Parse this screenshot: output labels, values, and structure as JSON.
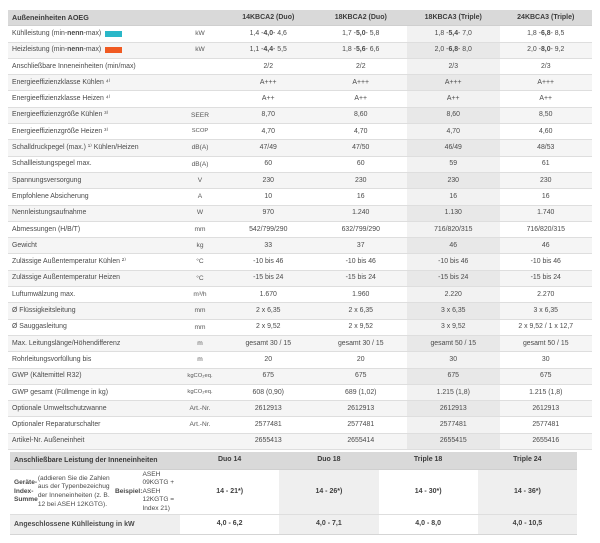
{
  "top_table": {
    "title": "Außeneinheiten AOEG",
    "columns": [
      "14KBCA2 (Duo)",
      "18KBCA2 (Duo)",
      "18KBCA3 (Triple)",
      "24KBCA3 (Triple)"
    ],
    "highlight_column_index": 2,
    "colors": {
      "cooling_swatch": "#2ab7c8",
      "heating_swatch": "#f05a22",
      "header_bg": "#d9d9d9",
      "stripe": "#f5f5f5"
    },
    "capacity_rows": [
      {
        "label_parts": [
          {
            "text": "Kühlleistung (min-",
            "bold": false
          },
          {
            "text": "nenn",
            "bold": true
          },
          {
            "text": "-max)",
            "bold": false
          }
        ],
        "swatch": "cooling-color-swatch",
        "swatch_color": "#2ab7c8",
        "unit": "kW",
        "values": [
          {
            "pre": "1,4 - ",
            "bold": "4,0",
            "post": " - 4,6"
          },
          {
            "pre": "1,7 - ",
            "bold": "5,0",
            "post": " - 5,8"
          },
          {
            "pre": "1,8 - ",
            "bold": "5,4",
            "post": " - 7,0"
          },
          {
            "pre": "1,8 - ",
            "bold": "6,8",
            "post": " - 8,5"
          }
        ]
      },
      {
        "label_parts": [
          {
            "text": "Heizleistung (min-",
            "bold": false
          },
          {
            "text": "nenn",
            "bold": true
          },
          {
            "text": "-max)",
            "bold": false
          }
        ],
        "swatch": "heating-color-swatch",
        "swatch_color": "#f05a22",
        "unit": "kW",
        "values": [
          {
            "pre": "1,1 - ",
            "bold": "4,4",
            "post": " - 5,5"
          },
          {
            "pre": "1,8 - ",
            "bold": "5,6",
            "post": " - 6,6"
          },
          {
            "pre": "2,0 - ",
            "bold": "6,8",
            "post": " - 8,0"
          },
          {
            "pre": "2,0 - ",
            "bold": "8,0",
            "post": " - 9,2"
          }
        ]
      }
    ],
    "rows": [
      {
        "label": "Anschließbare Inneneinheiten (min/max)",
        "unit": "",
        "values": [
          "2/2",
          "2/2",
          "2/3",
          "2/3"
        ]
      },
      {
        "label": "Energieeffizienzklasse Kühlen ⁴⁾",
        "unit": "",
        "values": [
          "A+++",
          "A+++",
          "A+++",
          "A+++"
        ]
      },
      {
        "label": "Energieeffizienzklasse Heizen ⁴⁾",
        "unit": "",
        "values": [
          "A++",
          "A++",
          "A++",
          "A++"
        ]
      },
      {
        "label": "Energieeffizienzgröße Kühlen ³⁾",
        "unit": "SEER",
        "values": [
          "8,70",
          "8,60",
          "8,60",
          "8,50"
        ]
      },
      {
        "label": "Energieeffizienzgröße Heizen ³⁾",
        "unit": "SCOP",
        "values": [
          "4,70",
          "4,70",
          "4,70",
          "4,60"
        ]
      },
      {
        "label": "Schalldruckpegel (max.) ¹⁾ Kühlen/Heizen",
        "unit": "dB(A)",
        "values": [
          "47/49",
          "47/50",
          "46/49",
          "48/53"
        ]
      },
      {
        "label": "Schallleistungspegel max.",
        "unit": "dB(A)",
        "values": [
          "60",
          "60",
          "59",
          "61"
        ]
      },
      {
        "label": "Spannungsversorgung",
        "unit": "V",
        "values": [
          "230",
          "230",
          "230",
          "230"
        ]
      },
      {
        "label": "Empfohlene Absicherung",
        "unit": "A",
        "values": [
          "10",
          "16",
          "16",
          "16"
        ]
      },
      {
        "label": "Nennleistungsaufnahme",
        "unit": "W",
        "values": [
          "970",
          "1.240",
          "1.130",
          "1.740"
        ]
      },
      {
        "label": "Abmessungen (H/B/T)",
        "unit": "mm",
        "values": [
          "542/799/290",
          "632/799/290",
          "716/820/315",
          "716/820/315"
        ]
      },
      {
        "label": "Gewicht",
        "unit": "kg",
        "values": [
          "33",
          "37",
          "46",
          "46"
        ]
      },
      {
        "label": "Zulässige Außentemperatur Kühlen ²⁾",
        "unit": "°C",
        "values": [
          "-10 bis 46",
          "-10 bis 46",
          "-10 bis 46",
          "-10 bis 46"
        ]
      },
      {
        "label": "Zulässige Außentemperatur Heizen",
        "unit": "°C",
        "values": [
          "-15 bis 24",
          "-15 bis 24",
          "-15 bis 24",
          "-15 bis 24"
        ]
      },
      {
        "label": "Luftumwälzung max.",
        "unit": "m³/h",
        "values": [
          "1.670",
          "1.960",
          "2.220",
          "2.270"
        ]
      },
      {
        "label": "Ø Flüssigkeitsleitung",
        "unit": "mm",
        "values": [
          "2 x 6,35",
          "2 x 6,35",
          "3 x 6,35",
          "3 x 6,35"
        ]
      },
      {
        "label": "Ø Sauggasleitung",
        "unit": "mm",
        "values": [
          "2 x 9,52",
          "2 x 9,52",
          "3 x 9,52",
          "2 x 9,52 / 1 x 12,7"
        ]
      },
      {
        "label": "Max. Leitungslänge/Höhendifferenz",
        "unit": "m",
        "values": [
          "gesamt 30 / 15",
          "gesamt 30 / 15",
          "gesamt 50 / 15",
          "gesamt 50 / 15"
        ]
      },
      {
        "label": "Rohrleitungsvorfüllung bis",
        "unit": "m",
        "values": [
          "20",
          "20",
          "30",
          "30"
        ]
      },
      {
        "label": "GWP (Kältemittel R32)",
        "unit": "kgCO₂eq.",
        "values": [
          "675",
          "675",
          "675",
          "675"
        ]
      },
      {
        "label": "GWP gesamt (Füllmenge in kg)",
        "unit": "kgCO₂eq.",
        "values": [
          "608 (0,90)",
          "689 (1,02)",
          "1.215 (1,8)",
          "1.215 (1,8)"
        ]
      },
      {
        "label": "Optionale Umweltschutzwanne",
        "unit": "Art.-Nr.",
        "values": [
          "2612913",
          "2612913",
          "2612913",
          "2612913"
        ]
      },
      {
        "label": "Optionaler Reparaturschalter",
        "unit": "Art.-Nr.",
        "values": [
          "2577481",
          "2577481",
          "2577481",
          "2577481"
        ]
      },
      {
        "label": "Artikel-Nr. Außeneinheit",
        "unit": "",
        "values": [
          "2655413",
          "2655414",
          "2655415",
          "2655416"
        ]
      }
    ]
  },
  "bottom_table": {
    "title": "Anschließbare Leistung der Inneneinheiten",
    "columns": [
      "Duo 14",
      "Duo 18",
      "Triple 18",
      "Triple 24"
    ],
    "striped_column_indexes": [
      1,
      3
    ],
    "rows": [
      {
        "label_parts": [
          {
            "text": "Geräte-Index-Summe",
            "bold": true
          },
          {
            "text": " (addieren Sie die Zahlen aus der Typenbezeichug der Inneneinheiten (z. B. 12 bei ASEH 12KGTG). ",
            "bold": false
          },
          {
            "text": "Beispiel:",
            "bold": true
          },
          {
            "text": " ASEH 09KGTG + ASEH 12KGTG = Index 21)",
            "bold": false
          }
        ],
        "values": [
          "14 - 21*)",
          "14 - 26*)",
          "14 - 30*)",
          "14 - 36*)"
        ]
      },
      {
        "label_parts": [
          {
            "text": "Angeschlossene Kühlleistung in kW",
            "bold": true
          }
        ],
        "label_shaded": true,
        "values": [
          "4,0 - 6,2",
          "4,0 - 7,1",
          "4,0 - 8,0",
          "4,0 - 10,5"
        ]
      }
    ]
  }
}
